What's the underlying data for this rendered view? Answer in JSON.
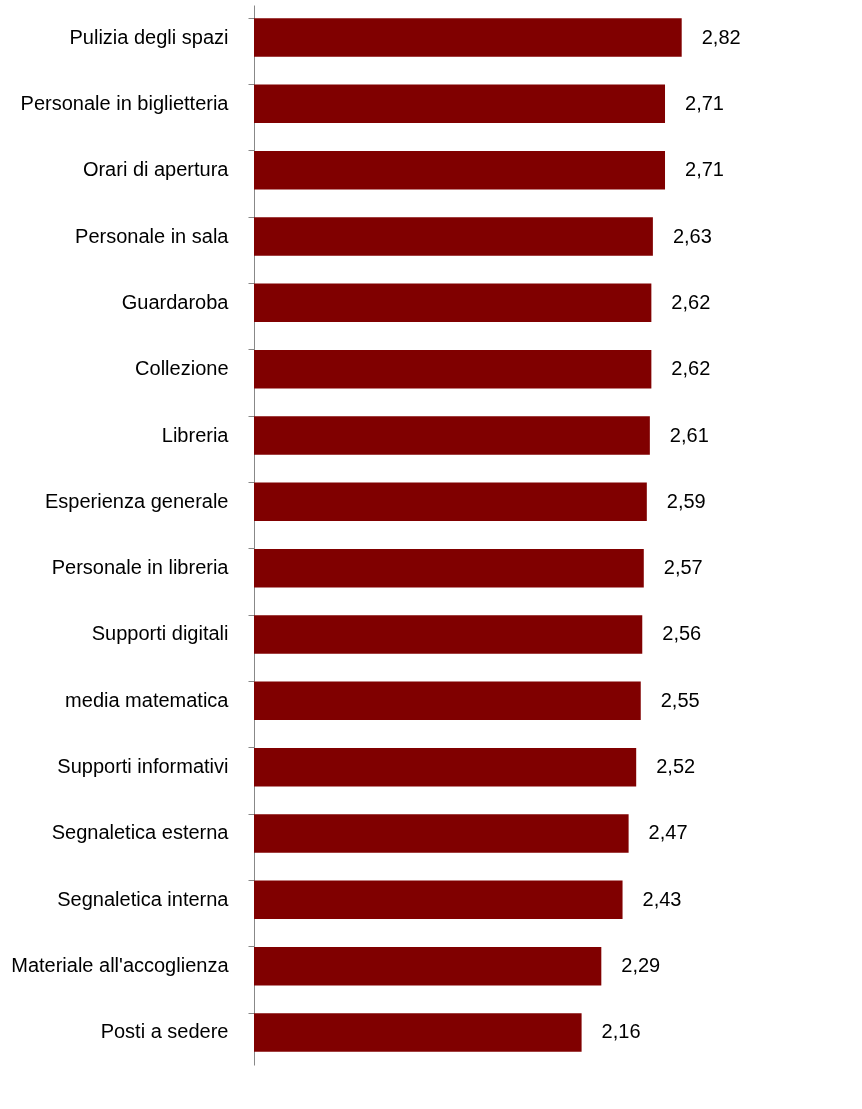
{
  "chart_data": {
    "type": "bar",
    "orientation": "horizontal",
    "categories": [
      "Pulizia degli spazi",
      "Personale in biglietteria",
      "Orari di apertura",
      "Personale in sala",
      "Guardaroba",
      "Collezione",
      "Libreria",
      "Esperienza generale",
      "Personale in libreria",
      "Supporti digitali",
      "media matematica",
      "Supporti informativi",
      "Segnaletica esterna",
      "Segnaletica interna",
      "Materiale all'accoglienza",
      "Posti a sedere"
    ],
    "values": [
      2.82,
      2.71,
      2.71,
      2.63,
      2.62,
      2.62,
      2.61,
      2.59,
      2.57,
      2.56,
      2.55,
      2.52,
      2.47,
      2.43,
      2.29,
      2.16
    ],
    "value_labels": [
      "2,82",
      "2,71",
      "2,71",
      "2,63",
      "2,62",
      "2,62",
      "2,61",
      "2,59",
      "2,57",
      "2,56",
      "2,55",
      "2,52",
      "2,47",
      "2,43",
      "2,29",
      "2,16"
    ],
    "color": "#800000"
  }
}
